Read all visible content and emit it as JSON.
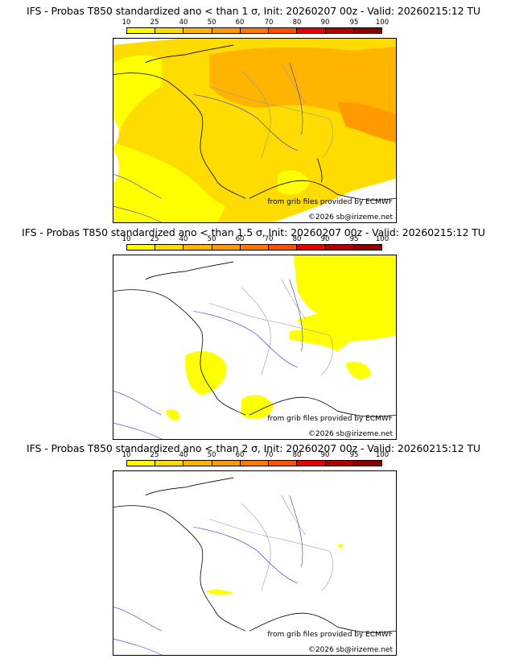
{
  "legend": {
    "labels": [
      "10",
      "25",
      "40",
      "50",
      "60",
      "70",
      "80",
      "90",
      "95",
      "100"
    ],
    "colors": [
      "#ffff00",
      "#ffdc00",
      "#ffb400",
      "#ff9a00",
      "#ff7800",
      "#ff5000",
      "#e60000",
      "#b40000",
      "#8c0000",
      "#500000"
    ]
  },
  "panels": [
    {
      "title": "IFS - Probas T850  standardized ano < than 1 σ, Init: 20260207 00z - Valid: 20260215:12 TU",
      "source": "from grib files provided by ECMWF",
      "copyright": "©2026 sb@irizeme.net"
    },
    {
      "title": "IFS - Probas T850  standardized ano < than 1.5 σ, Init: 20260207 00z - Valid: 20260215:12 TU",
      "source": "from grib files provided by ECMWF",
      "copyright": "©2026 sb@irizeme.net"
    },
    {
      "title": "IFS - Probas T850  standardized ano < than 2 σ, Init: 20260207 00z - Valid: 20260215:12 TU",
      "source": "from grib files provided by ECMWF",
      "copyright": "©2026 sb@irizeme.net"
    }
  ]
}
